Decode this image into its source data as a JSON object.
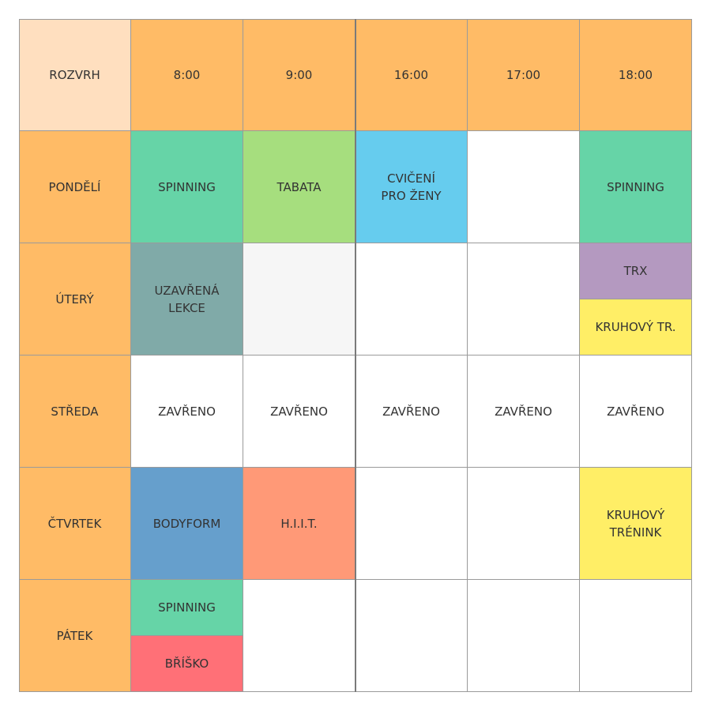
{
  "corner": {
    "label": "ROZVRH",
    "color": "#ffdfbf"
  },
  "colors": {
    "header": "#ffbb66",
    "empty": "#ffffff",
    "shaded": "#f6f6f6"
  },
  "times": [
    "8:00",
    "9:00",
    "16:00",
    "17:00",
    "18:00"
  ],
  "days": [
    {
      "label": "PONDĚLÍ",
      "slots": [
        {
          "label": "SPINNING",
          "color": "#66d4a7"
        },
        {
          "label": "TABATA",
          "color": "#a6de7e"
        },
        {
          "label": "CVIČENÍ\nPRO ŽENY",
          "color": "#66ccee"
        },
        {
          "label": "",
          "color": "#ffffff"
        },
        {
          "label": "SPINNING",
          "color": "#66d4a7"
        }
      ]
    },
    {
      "label": "ÚTERÝ",
      "slots": [
        {
          "label": "UZAVŘENÁ\nLEKCE",
          "color": "#80aaa8"
        },
        {
          "label": "",
          "color": "#f6f6f6"
        },
        {
          "label": "",
          "color": "#ffffff"
        },
        {
          "label": "",
          "color": "#ffffff"
        },
        {
          "split": [
            {
              "label": "TRX",
              "color": "#b499c0"
            },
            {
              "label": "KRUHOVÝ TR.",
              "color": "#ffee66"
            }
          ]
        }
      ]
    },
    {
      "label": "STŘEDA",
      "slots": [
        {
          "label": "ZAVŘENO",
          "color": "#ffffff"
        },
        {
          "label": "ZAVŘENO",
          "color": "#ffffff"
        },
        {
          "label": "ZAVŘENO",
          "color": "#ffffff"
        },
        {
          "label": "ZAVŘENO",
          "color": "#ffffff"
        },
        {
          "label": "ZAVŘENO",
          "color": "#ffffff"
        }
      ]
    },
    {
      "label": "ČTVRTEK",
      "slots": [
        {
          "label": "BODYFORM",
          "color": "#669fcc"
        },
        {
          "label": "H.I.I.T.",
          "color": "#ff9977"
        },
        {
          "label": "",
          "color": "#ffffff"
        },
        {
          "label": "",
          "color": "#ffffff"
        },
        {
          "label": "KRUHOVÝ\nTRÉNINK",
          "color": "#ffee66"
        }
      ]
    },
    {
      "label": "PÁTEK",
      "slots": [
        {
          "split": [
            {
              "label": "SPINNING",
              "color": "#66d4a7"
            },
            {
              "label": "BŘÍŠKO",
              "color": "#ff7077"
            }
          ]
        },
        {
          "label": "",
          "color": "#ffffff"
        },
        {
          "label": "",
          "color": "#ffffff"
        },
        {
          "label": "",
          "color": "#ffffff"
        },
        {
          "label": "",
          "color": "#ffffff"
        }
      ]
    }
  ]
}
